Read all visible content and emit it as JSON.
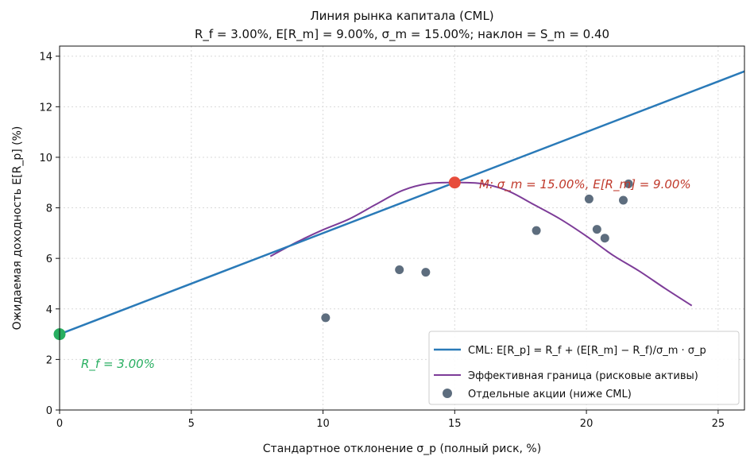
{
  "chart_data": {
    "type": "line",
    "title": "Линия рынка капитала (CML)",
    "subtitle": "R_f = 3.00%, E[R_m] = 9.00%, σ_m = 15.00%; наклон = S_m = 0.40",
    "xlabel": "Стандартное отклонение σ_p (полный риск, %)",
    "ylabel": "Ожидаемая доходность E[R_p] (%)",
    "xlim": [
      0,
      26
    ],
    "ylim": [
      0,
      14.4
    ],
    "xticks": [
      0,
      5,
      10,
      15,
      20,
      25
    ],
    "yticks": [
      0,
      2,
      4,
      6,
      8,
      10,
      12,
      14
    ],
    "grid": true,
    "legend_position": "lower-right",
    "series": [
      {
        "name": "CML: E[R_p] = R_f + (E[R_m] − R_f)/σ_m · σ_p",
        "kind": "line",
        "color": "#2a7ab8",
        "x": [
          0,
          26
        ],
        "y": [
          3.0,
          13.4
        ]
      },
      {
        "name": "Эффективная граница (рисковые активы)",
        "kind": "line",
        "color": "#7d3c98",
        "x": [
          8,
          9,
          10,
          11,
          12,
          13,
          14,
          15,
          16,
          17,
          18,
          19,
          20,
          21,
          22,
          23,
          24
        ],
        "y": [
          6.08,
          6.64,
          7.13,
          7.56,
          8.13,
          8.68,
          8.96,
          9.0,
          8.96,
          8.68,
          8.13,
          7.56,
          6.88,
          6.13,
          5.5,
          4.8,
          4.13
        ]
      },
      {
        "name": "Отдельные акции (ниже CML)",
        "kind": "scatter",
        "color": "#5d6d7e",
        "x": [
          10.1,
          12.9,
          13.9,
          18.1,
          20.1,
          20.4,
          20.7,
          21.4,
          21.6
        ],
        "y": [
          3.65,
          5.55,
          5.45,
          7.1,
          8.35,
          7.15,
          6.8,
          8.3,
          8.95
        ]
      }
    ],
    "points": [
      {
        "label": "M: σ_m = 15.00%, E[R_m] = 9.00%",
        "x": 15,
        "y": 9.0,
        "color": "#e74c3c"
      },
      {
        "label": "R_f = 3.00%",
        "x": 0,
        "y": 3.0,
        "color": "#27ae60"
      }
    ]
  }
}
